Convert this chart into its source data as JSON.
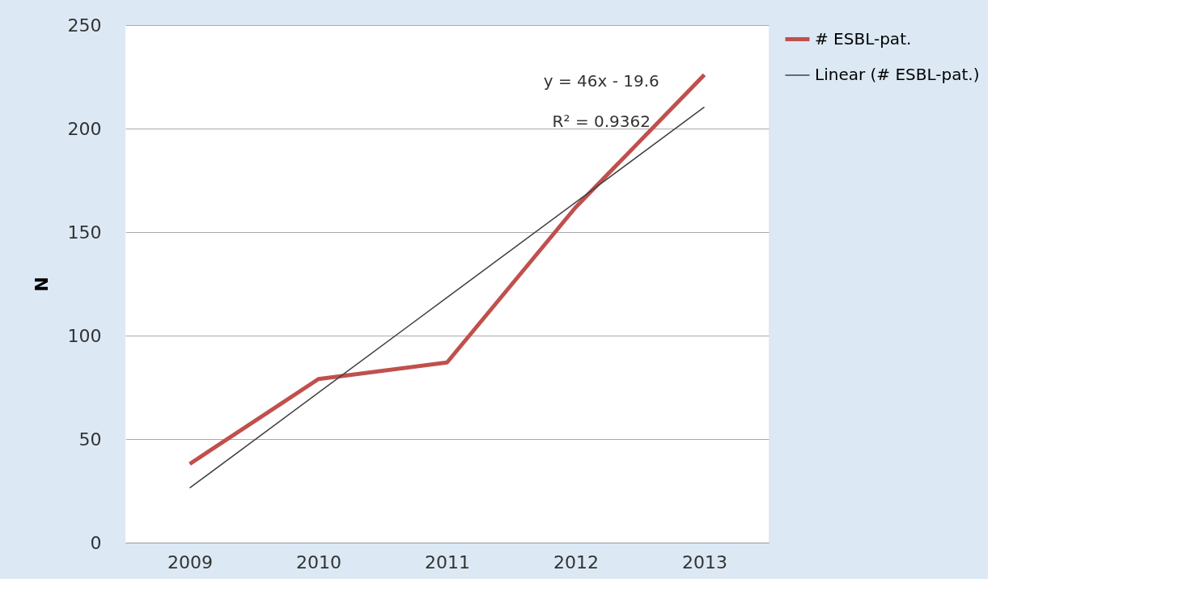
{
  "chart_data": {
    "type": "line",
    "ylabel": "N",
    "categories": [
      "2009",
      "2010",
      "2011",
      "2012",
      "2013"
    ],
    "series": [
      {
        "name": "# ESBL-pat.",
        "color": "#c0504d",
        "values": [
          38,
          79,
          87,
          162,
          226
        ]
      },
      {
        "name": "Linear (# ESBL-pat.)",
        "color": "#404040",
        "values": [
          26.4,
          72.4,
          118.4,
          164.4,
          210.4
        ]
      }
    ],
    "annotations": [
      "y = 46x - 19.6",
      "R² = 0.9362"
    ],
    "ylim": [
      0,
      250
    ],
    "yticks": [
      0,
      50,
      100,
      150,
      200,
      250
    ],
    "grid": "y",
    "legend": "right",
    "marker": "none",
    "line_style": "solid"
  }
}
